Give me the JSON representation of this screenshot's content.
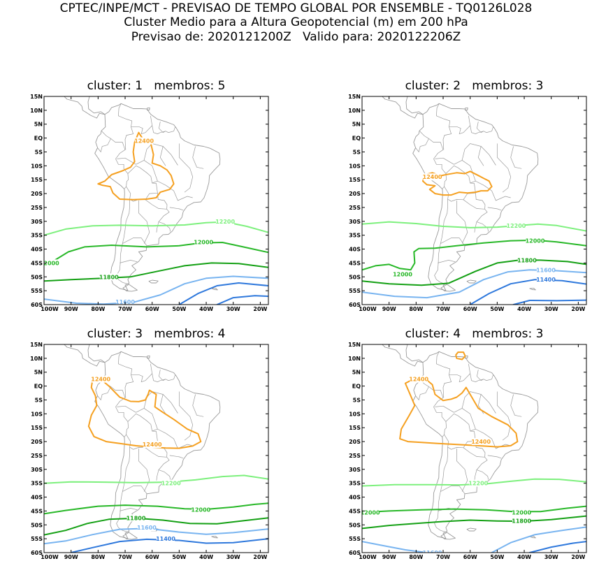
{
  "header": {
    "line1": "CPTEC/INPE/MCT - PREVISAO DE TEMPO GLOBAL POR ENSEMBLE - TQ0126L028",
    "line2": "Cluster Medio para a Altura Geopotencial (m) em 200 hPa",
    "line3": "Previsao de: 2020121200Z   Valido para: 2020122206Z"
  },
  "colors": {
    "c12400": "#f5a020",
    "c12200": "#7df07d",
    "c12000": "#28b828",
    "c11800": "#14a014",
    "c11600": "#78b4f0",
    "c11400": "#2e78dc",
    "coast": "#9a9a9a"
  },
  "axes": {
    "lat_labels": [
      "15N",
      "10N",
      "5N",
      "EQ",
      "5S",
      "10S",
      "15S",
      "20S",
      "25S",
      "30S",
      "35S",
      "40S",
      "45S",
      "50S",
      "55S",
      "60S"
    ],
    "lon_labels": [
      "100W",
      "90W",
      "80W",
      "70W",
      "60W",
      "50W",
      "40W",
      "30W",
      "20W"
    ]
  },
  "panels": [
    {
      "title": "cluster: 1   membros: 5",
      "labels": [
        {
          "text": "12400",
          "lon": -63,
          "lat": -1
        },
        {
          "text": "12200",
          "lon": -33,
          "lat": -30
        },
        {
          "text": "12000",
          "lon": -41,
          "lat": -37.5
        },
        {
          "text": "12000",
          "lon": -98,
          "lat": -45
        },
        {
          "text": "11800",
          "lon": -76,
          "lat": -50
        },
        {
          "text": "11600",
          "lon": -70,
          "lat": -59
        }
      ]
    },
    {
      "title": "cluster: 2   membros: 3",
      "labels": [
        {
          "text": "12400",
          "lon": -74,
          "lat": -14
        },
        {
          "text": "12200",
          "lon": -43,
          "lat": -31.5
        },
        {
          "text": "12000",
          "lon": -36,
          "lat": -37
        },
        {
          "text": "12000",
          "lon": -85,
          "lat": -49
        },
        {
          "text": "11800",
          "lon": -39,
          "lat": -44
        },
        {
          "text": "11600",
          "lon": -32,
          "lat": -47.5
        },
        {
          "text": "11400",
          "lon": -32,
          "lat": -51
        }
      ]
    },
    {
      "title": "cluster: 3   membros: 4",
      "labels": [
        {
          "text": "12400",
          "lon": -79,
          "lat": 2.5
        },
        {
          "text": "12400",
          "lon": -60,
          "lat": -21
        },
        {
          "text": "12200",
          "lon": -53,
          "lat": -35
        },
        {
          "text": "12000",
          "lon": -42,
          "lat": -44.5
        },
        {
          "text": "11800",
          "lon": -66,
          "lat": -47.5
        },
        {
          "text": "11600",
          "lon": -62,
          "lat": -51
        },
        {
          "text": "11400",
          "lon": -55,
          "lat": -55
        }
      ]
    },
    {
      "title": "cluster: 4   membros: 3",
      "labels": [
        {
          "text": "12400",
          "lon": -79,
          "lat": 2.5
        },
        {
          "text": "12400",
          "lon": -56,
          "lat": -20
        },
        {
          "text": "12200",
          "lon": -57,
          "lat": -35
        },
        {
          "text": "12000",
          "lon": -97,
          "lat": -45.5
        },
        {
          "text": "12000",
          "lon": -41,
          "lat": -45.5
        },
        {
          "text": "11800",
          "lon": -41,
          "lat": -48.5
        },
        {
          "text": "11600",
          "lon": -74,
          "lat": -60
        }
      ]
    }
  ]
}
